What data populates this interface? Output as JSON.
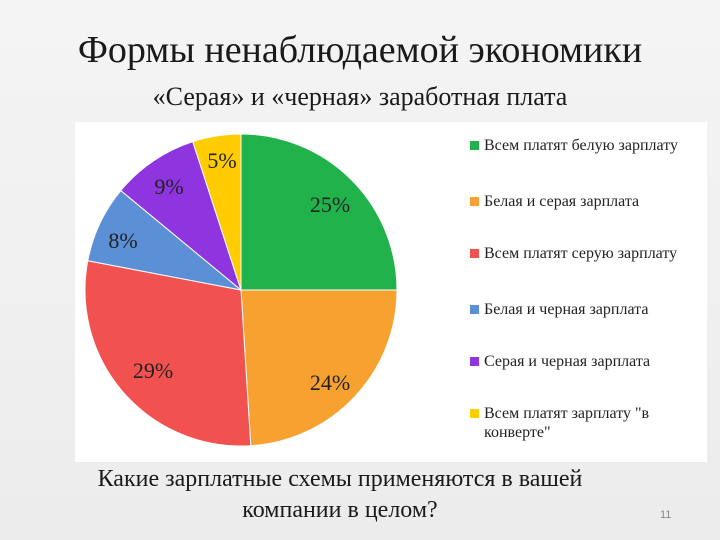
{
  "slide": {
    "title": "Формы ненаблюдаемой экономики",
    "subtitle": "«Серая» и «черная» заработная плата",
    "question": "Какие зарплатные схемы применяются в вашей компании в целом?",
    "slide_number": "11"
  },
  "chart_data": {
    "type": "pie",
    "title": "",
    "legend_position": "right",
    "categories": [
      "Всем платят белую зарплату",
      "Белая и серая зарплата",
      "Всем платят серую зарплату",
      "Белая и черная зарплата",
      "Серая и черная зарплата",
      "Всем платят зарплату \"в конверте\""
    ],
    "values": [
      25,
      24,
      29,
      8,
      9,
      5
    ],
    "labels": [
      "25%",
      "24%",
      "29%",
      "8%",
      "9%",
      "5%"
    ],
    "colors": [
      "#22b24c",
      "#f7a131",
      "#f2524f",
      "#5b8fd6",
      "#8f35e0",
      "#ffcc00"
    ],
    "start_angle": "12 o'clock",
    "direction": "clockwise"
  }
}
